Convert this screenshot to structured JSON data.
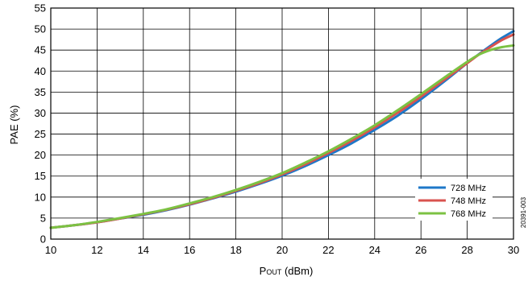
{
  "chart_data": {
    "type": "line",
    "xlabel_main": "P",
    "xlabel_sub": "OUT",
    "xlabel_unit": " (dBm)",
    "ylabel": "PAE (%)",
    "xlim": [
      10,
      30
    ],
    "ylim": [
      0,
      55
    ],
    "xticks": [
      10,
      12,
      14,
      16,
      18,
      20,
      22,
      24,
      26,
      28,
      30
    ],
    "yticks": [
      0,
      5,
      10,
      15,
      20,
      25,
      30,
      35,
      40,
      45,
      50,
      55
    ],
    "grid": true,
    "legend_position": "bottom-right",
    "x": [
      10,
      11,
      12,
      13,
      14,
      15,
      16,
      17,
      18,
      19,
      20,
      21,
      22,
      23,
      24,
      25,
      26,
      27,
      28,
      28.5,
      29,
      29.5,
      30
    ],
    "series": [
      {
        "name": "728 MHz",
        "color": "#1e78c8",
        "values": [
          2.7,
          3.3,
          4.0,
          4.9,
          5.8,
          6.9,
          8.2,
          9.7,
          11.3,
          13.1,
          15.1,
          17.4,
          20.0,
          22.8,
          26.0,
          29.4,
          33.3,
          37.5,
          41.9,
          44.0,
          46.0,
          47.9,
          49.5
        ]
      },
      {
        "name": "748 MHz",
        "color": "#d9534f",
        "values": [
          2.7,
          3.3,
          4.0,
          4.9,
          5.9,
          7.0,
          8.3,
          9.8,
          11.5,
          13.3,
          15.4,
          17.8,
          20.5,
          23.4,
          26.6,
          30.1,
          33.9,
          37.9,
          41.9,
          43.9,
          45.7,
          47.4,
          48.7
        ]
      },
      {
        "name": "768 MHz",
        "color": "#7cc243",
        "values": [
          2.7,
          3.3,
          4.1,
          5.0,
          6.0,
          7.1,
          8.5,
          10.0,
          11.7,
          13.6,
          15.7,
          18.2,
          20.9,
          23.9,
          27.1,
          30.7,
          34.5,
          38.4,
          42.2,
          43.9,
          45.0,
          45.7,
          46.1
        ]
      }
    ],
    "figure_id": "20391-003"
  }
}
